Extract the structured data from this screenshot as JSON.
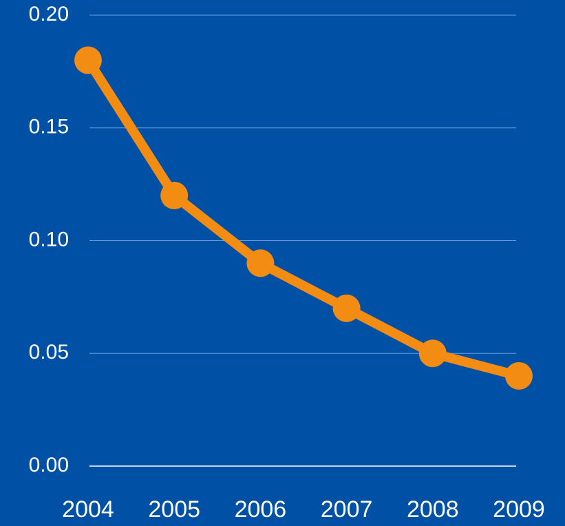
{
  "chart_data": {
    "type": "line",
    "categories": [
      "2004",
      "2005",
      "2006",
      "2007",
      "2008",
      "2009"
    ],
    "series": [
      {
        "color": "#f28c12",
        "values": [
          0.18,
          0.12,
          0.09,
          0.07,
          0.05,
          0.04
        ]
      }
    ],
    "ylim": [
      0,
      0.2
    ],
    "yticks": [
      {
        "value": 0,
        "label": "0.00"
      },
      0.05,
      {
        "value": 0.1,
        "label": "0.10"
      },
      0.15,
      {
        "value": 0.2,
        "label": "0.20"
      }
    ],
    "grid": true
  }
}
